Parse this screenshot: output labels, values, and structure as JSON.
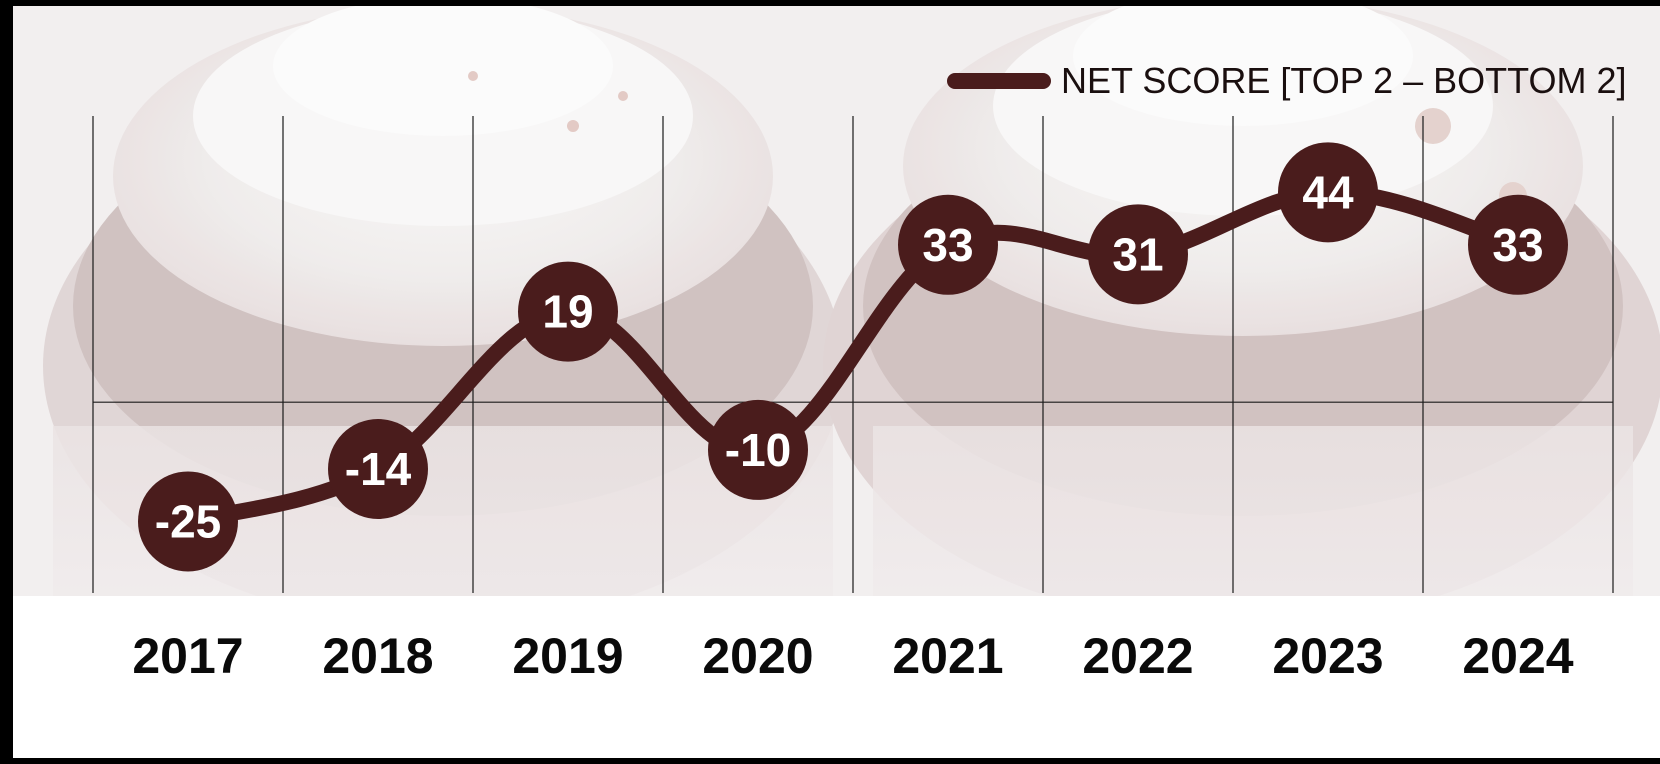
{
  "chart_data": {
    "type": "line",
    "categories": [
      "2017",
      "2018",
      "2019",
      "2020",
      "2021",
      "2022",
      "2023",
      "2024"
    ],
    "series": [
      {
        "name": "NET SCORE [TOP 2 – BOTTOM 2]",
        "values": [
          -25,
          -14,
          19,
          -10,
          33,
          31,
          44,
          33
        ]
      }
    ],
    "value_labels": [
      "-25",
      "-14",
      "19",
      "-10",
      "33",
      "31",
      "44",
      "33"
    ],
    "ylim": [
      -40,
      60
    ],
    "grid": true,
    "legend": "top-right",
    "colors": {
      "series": "#4a1c1c",
      "marker_text": "#ffffff",
      "axis_text": "#0a0a0a",
      "grid": "#1a1a1a"
    },
    "background_icon": "cupcake-photo"
  }
}
